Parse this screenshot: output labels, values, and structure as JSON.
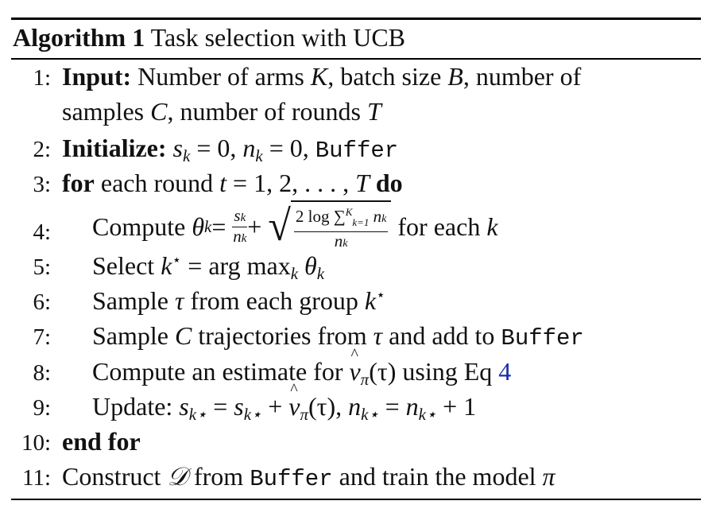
{
  "header": {
    "label": "Algorithm 1",
    "title": "Task selection with UCB"
  },
  "steps": [
    {
      "num": "1:",
      "keyword": "Input:",
      "text_a": "Number of arms",
      "K": "K",
      "text_b": ", batch size",
      "B": "B",
      "text_c": ", number of",
      "text_d": "samples",
      "C": "C",
      "text_e": ", number of rounds",
      "T": "T"
    },
    {
      "num": "2:",
      "keyword": "Initialize:",
      "s": "s",
      "k": "k",
      "eq0": " = 0,",
      "n": "n",
      "eq0b": " = 0,",
      "buffer": "Buffer"
    },
    {
      "num": "3:",
      "keyword_for": "for",
      "text": "each round",
      "t": "t",
      "seq": " = 1, 2, . . . ,",
      "T": "T",
      "keyword_do": "do"
    },
    {
      "num": "4:",
      "text": "Compute",
      "theta": "θ",
      "k": "k",
      "eq": " =",
      "plus": " +",
      "numer": "2 log",
      "sum": "∑",
      "sum_upper": "K",
      "sum_lower": "k=1",
      "n": "n",
      "denom": "n",
      "tail": "for each",
      "tail_k": "k"
    },
    {
      "num": "5:",
      "text": "Select",
      "kstar": "k",
      "star": "⋆",
      "eq": " = arg max",
      "sub_k": "k",
      "theta": "θ",
      "theta_k": "k"
    },
    {
      "num": "6:",
      "text": "Sample",
      "tau": "τ",
      "text_b": "from each group",
      "kstar": "k",
      "star": "⋆"
    },
    {
      "num": "7:",
      "text": "Sample",
      "C": "C",
      "text_b": "trajectories from",
      "tau": "τ",
      "text_c": "and add to",
      "buffer": "Buffer"
    },
    {
      "num": "8:",
      "text": "Compute an estimate for",
      "nu": "ν",
      "pi": "π",
      "arg": "(τ)",
      "text_b": "using Eq",
      "ref": "4"
    },
    {
      "num": "9:",
      "text": "Update:",
      "s": "s",
      "ks": "k⋆",
      "eq": " =",
      "plus": " +",
      "nu": "ν",
      "pi": "π",
      "arg": "(τ),",
      "n": "n",
      "rest": " + 1"
    },
    {
      "num": "10:",
      "keyword": "end for"
    },
    {
      "num": "11:",
      "text": "Construct",
      "D": "𝒟",
      "text_b": "from",
      "buffer": "Buffer",
      "text_c": "and train the model",
      "pi": "π"
    }
  ]
}
